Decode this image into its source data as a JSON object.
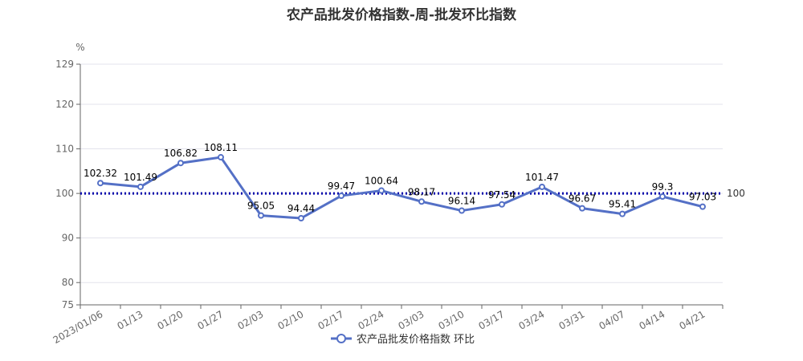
{
  "chart_data": {
    "type": "line",
    "title": "农产品批发价格指数-周-批发环比指数",
    "ylabel": "%",
    "xlabel": "",
    "ylim": [
      75,
      129
    ],
    "yticks": [
      75,
      80,
      90,
      100,
      110,
      120,
      129
    ],
    "categories": [
      "2023/01/06",
      "01/13",
      "01/20",
      "01/27",
      "02/03",
      "02/10",
      "02/17",
      "02/24",
      "03/03",
      "03/10",
      "03/17",
      "03/24",
      "03/31",
      "04/07",
      "04/14",
      "04/21"
    ],
    "series": [
      {
        "name": "农产品批发价格指数 环比",
        "values": [
          102.32,
          101.49,
          106.82,
          108.11,
          95.05,
          94.44,
          99.47,
          100.64,
          98.17,
          96.14,
          97.54,
          101.47,
          96.67,
          95.41,
          99.3,
          97.03
        ],
        "color": "#5470c6"
      }
    ],
    "reference_line": {
      "value": 100,
      "label": "100",
      "color": "#0000aa",
      "style": "dotted"
    },
    "grid": "horizontal",
    "legend_position": "bottom-center"
  }
}
